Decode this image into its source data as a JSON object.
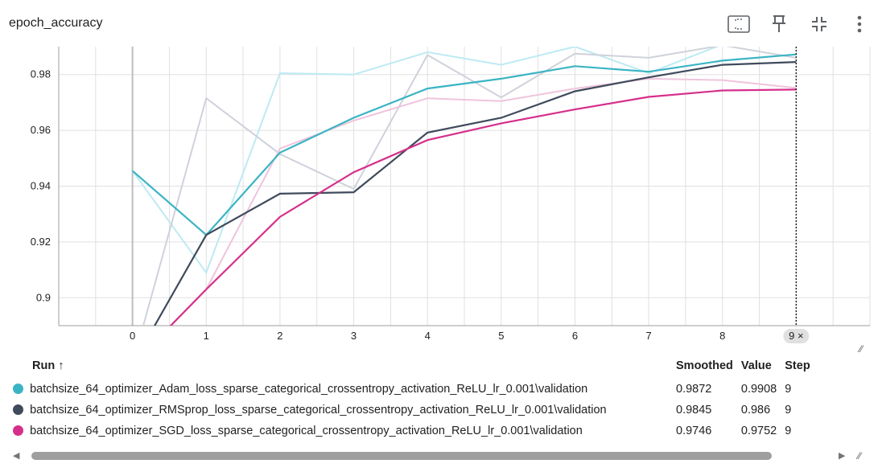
{
  "card": {
    "title": "epoch_accuracy"
  },
  "toolbar": {
    "fit_icon": "fit-domain-icon",
    "pin_icon": "pin-icon",
    "collapse_icon": "collapse-icon",
    "menu_icon": "more-vert-icon"
  },
  "chart_data": {
    "type": "line",
    "x": [
      0,
      1,
      2,
      3,
      4,
      5,
      6,
      7,
      8,
      9
    ],
    "x_ticks": [
      "0",
      "1",
      "2",
      "3",
      "4",
      "5",
      "6",
      "7",
      "8",
      "9"
    ],
    "y_ticks": [
      "0.9",
      "0.92",
      "0.94",
      "0.96",
      "0.98"
    ],
    "ylim": [
      0.89,
      0.99
    ],
    "xlim": [
      -1,
      10
    ],
    "grid": true,
    "hover_step": "9",
    "series": [
      {
        "name": "batchsize_64_optimizer_Adam_loss_sparse_categorical_crossentropy_activation_ReLU_lr_0.001\\validation",
        "color": "#3ab4c4",
        "raw_color": "#bdeaf3",
        "smoothed": [
          0.9455,
          0.9225,
          0.952,
          0.9645,
          0.975,
          0.9785,
          0.983,
          0.981,
          0.985,
          0.9872
        ],
        "raw": [
          0.9455,
          0.909,
          0.9805,
          0.98,
          0.988,
          0.9835,
          0.99,
          0.9805,
          0.9908,
          0.9908
        ]
      },
      {
        "name": "batchsize_64_optimizer_RMSprop_loss_sparse_categorical_crossentropy_activation_ReLU_lr_0.001\\validation",
        "color": "#3f4a5c",
        "raw_color": "#cfd2db",
        "smoothed": [
          0.876,
          0.9225,
          0.9373,
          0.9378,
          0.9592,
          0.9645,
          0.974,
          0.979,
          0.9835,
          0.9845
        ],
        "raw": [
          0.876,
          0.9715,
          0.9515,
          0.939,
          0.987,
          0.9718,
          0.9875,
          0.986,
          0.9905,
          0.986
        ]
      },
      {
        "name": "batchsize_64_optimizer_SGD_loss_sparse_categorical_crossentropy_activation_ReLU_lr_0.001\\validation",
        "color": "#d62f8b",
        "raw_color": "#efc4dc",
        "smoothed": [
          0.876,
          0.903,
          0.929,
          0.945,
          0.9565,
          0.9625,
          0.9675,
          0.972,
          0.9743,
          0.9746
        ],
        "raw": [
          0.876,
          0.903,
          0.9535,
          0.9635,
          0.9715,
          0.9705,
          0.975,
          0.9785,
          0.978,
          0.9752
        ]
      }
    ]
  },
  "table": {
    "headers": {
      "run": "Run ↑",
      "smoothed": "Smoothed",
      "value": "Value",
      "step": "Step"
    },
    "rows": [
      {
        "color": "#3ab4c4",
        "run": "batchsize_64_optimizer_Adam_loss_sparse_categorical_crossentropy_activation_ReLU_lr_0.001\\validation",
        "smoothed": "0.9872",
        "value": "0.9908",
        "step": "9"
      },
      {
        "color": "#3f4a5c",
        "run": "batchsize_64_optimizer_RMSprop_loss_sparse_categorical_crossentropy_activation_ReLU_lr_0.001\\validation",
        "smoothed": "0.9845",
        "value": "0.986",
        "step": "9"
      },
      {
        "color": "#d62f8b",
        "run": "batchsize_64_optimizer_SGD_loss_sparse_categorical_crossentropy_activation_ReLU_lr_0.001\\validation",
        "smoothed": "0.9746",
        "value": "0.9752",
        "step": "9"
      }
    ]
  },
  "scroll": {
    "left_icon": "scroll-left-icon",
    "right_icon": "scroll-right-icon"
  }
}
